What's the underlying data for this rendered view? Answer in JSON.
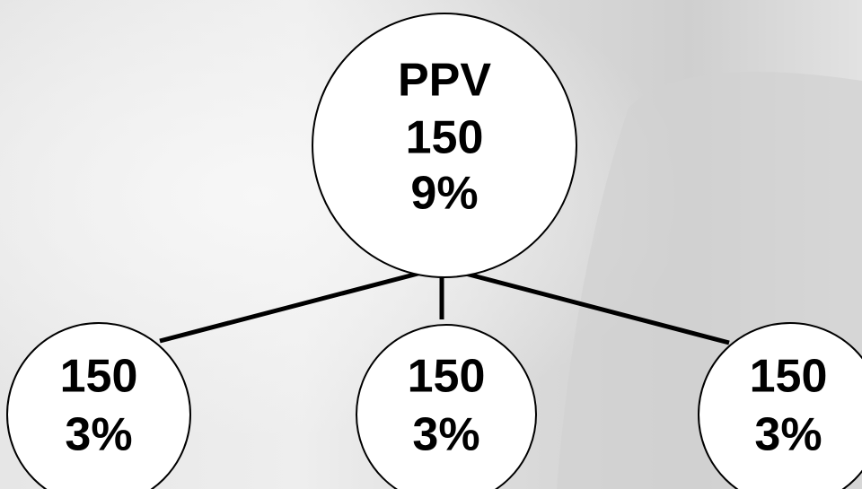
{
  "root": {
    "lines": [
      "PPV",
      "150",
      "9%"
    ]
  },
  "children": [
    {
      "lines": [
        "150",
        "3%"
      ]
    },
    {
      "lines": [
        "150",
        "3%"
      ]
    },
    {
      "lines": [
        "150",
        "3%"
      ]
    }
  ]
}
